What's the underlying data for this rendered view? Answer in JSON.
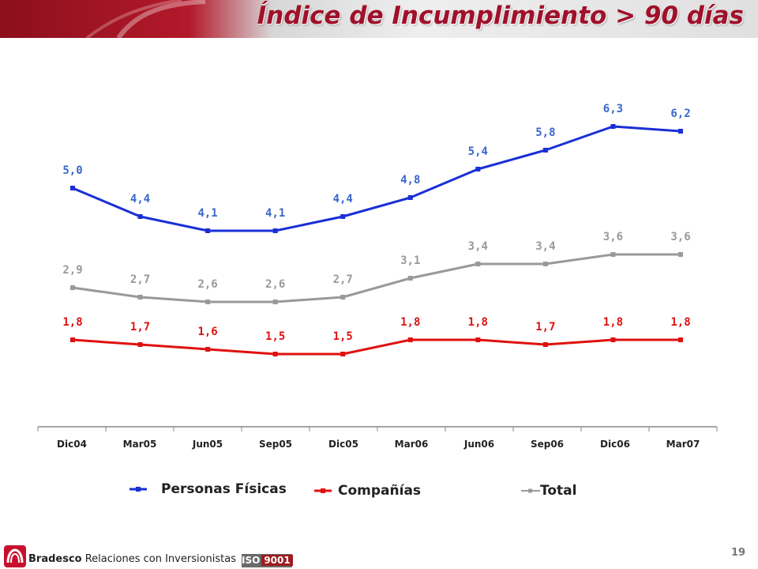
{
  "header": {
    "title": "Índice de Incumplimiento > 90 días"
  },
  "chart_data": {
    "type": "line",
    "title": "Índice de Incumplimiento > 90 días",
    "categories": [
      "Dic04",
      "Mar05",
      "Jun05",
      "Sep05",
      "Dic05",
      "Mar06",
      "Jun06",
      "Sep06",
      "Dic06",
      "Mar07"
    ],
    "series": [
      {
        "name": "Personas Físicas",
        "color": "#1a2fd6",
        "label_color": "#3a66cc",
        "values": [
          5.0,
          4.4,
          4.1,
          4.1,
          4.4,
          4.8,
          5.4,
          5.8,
          6.3,
          6.2
        ],
        "labels": [
          "5,0",
          "4,4",
          "4,1",
          "4,1",
          "4,4",
          "4,8",
          "5,4",
          "5,8",
          "6,3",
          "6,2"
        ]
      },
      {
        "name": "Compañías",
        "color": "#e01010",
        "label_color": "#e01010",
        "values": [
          1.8,
          1.7,
          1.6,
          1.5,
          1.5,
          1.8,
          1.8,
          1.7,
          1.8,
          1.8
        ],
        "labels": [
          "1,8",
          "1,7",
          "1,6",
          "1,5",
          "1,5",
          "1,8",
          "1,8",
          "1,7",
          "1,8",
          "1,8"
        ]
      },
      {
        "name": "Total",
        "color": "#999999",
        "label_color": "#999999",
        "values": [
          2.9,
          2.7,
          2.6,
          2.6,
          2.7,
          3.1,
          3.4,
          3.4,
          3.6,
          3.6
        ],
        "labels": [
          "2,9",
          "2,7",
          "2,6",
          "2,6",
          "2,7",
          "3,1",
          "3,4",
          "3,4",
          "3,6",
          "3,6"
        ]
      }
    ],
    "legend_position": "bottom",
    "grid": false
  },
  "footer": {
    "brand": "Bradesco",
    "text": "Relaciones con Inversionistas",
    "iso_prefix": "ISO",
    "iso_number": "9001"
  },
  "page_number": "19"
}
